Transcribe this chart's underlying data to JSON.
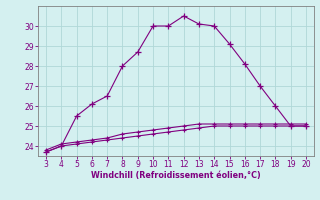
{
  "x": [
    3,
    4,
    5,
    6,
    7,
    8,
    9,
    10,
    11,
    12,
    13,
    14,
    15,
    16,
    17,
    18,
    19,
    20
  ],
  "curve1": [
    23.7,
    24.0,
    24.1,
    24.2,
    24.3,
    24.4,
    24.5,
    24.6,
    24.7,
    24.8,
    24.9,
    25.0,
    25.0,
    25.0,
    25.0,
    25.0,
    25.0,
    25.0
  ],
  "curve2": [
    23.8,
    24.1,
    24.2,
    24.3,
    24.4,
    24.6,
    24.7,
    24.8,
    24.9,
    25.0,
    25.1,
    25.1,
    25.1,
    25.1,
    25.1,
    25.1,
    25.1,
    25.1
  ],
  "curve3": [
    23.7,
    24.0,
    25.5,
    26.1,
    26.5,
    28.0,
    28.7,
    30.0,
    30.0,
    30.5,
    30.1,
    30.0,
    29.1,
    28.1,
    27.0,
    26.0,
    25.0,
    25.0
  ],
  "line_color": "#800080",
  "bg_color": "#d4f0f0",
  "grid_color": "#b0d8d8",
  "xlabel": "Windchill (Refroidissement éolien,°C)",
  "xlabel_color": "#800080",
  "tick_color": "#800080",
  "spine_color": "#808080",
  "ylim": [
    23.5,
    31.0
  ],
  "xlim": [
    2.5,
    20.5
  ],
  "yticks": [
    24,
    25,
    26,
    27,
    28,
    29,
    30
  ],
  "xticks": [
    3,
    4,
    5,
    6,
    7,
    8,
    9,
    10,
    11,
    12,
    13,
    14,
    15,
    16,
    17,
    18,
    19,
    20
  ]
}
